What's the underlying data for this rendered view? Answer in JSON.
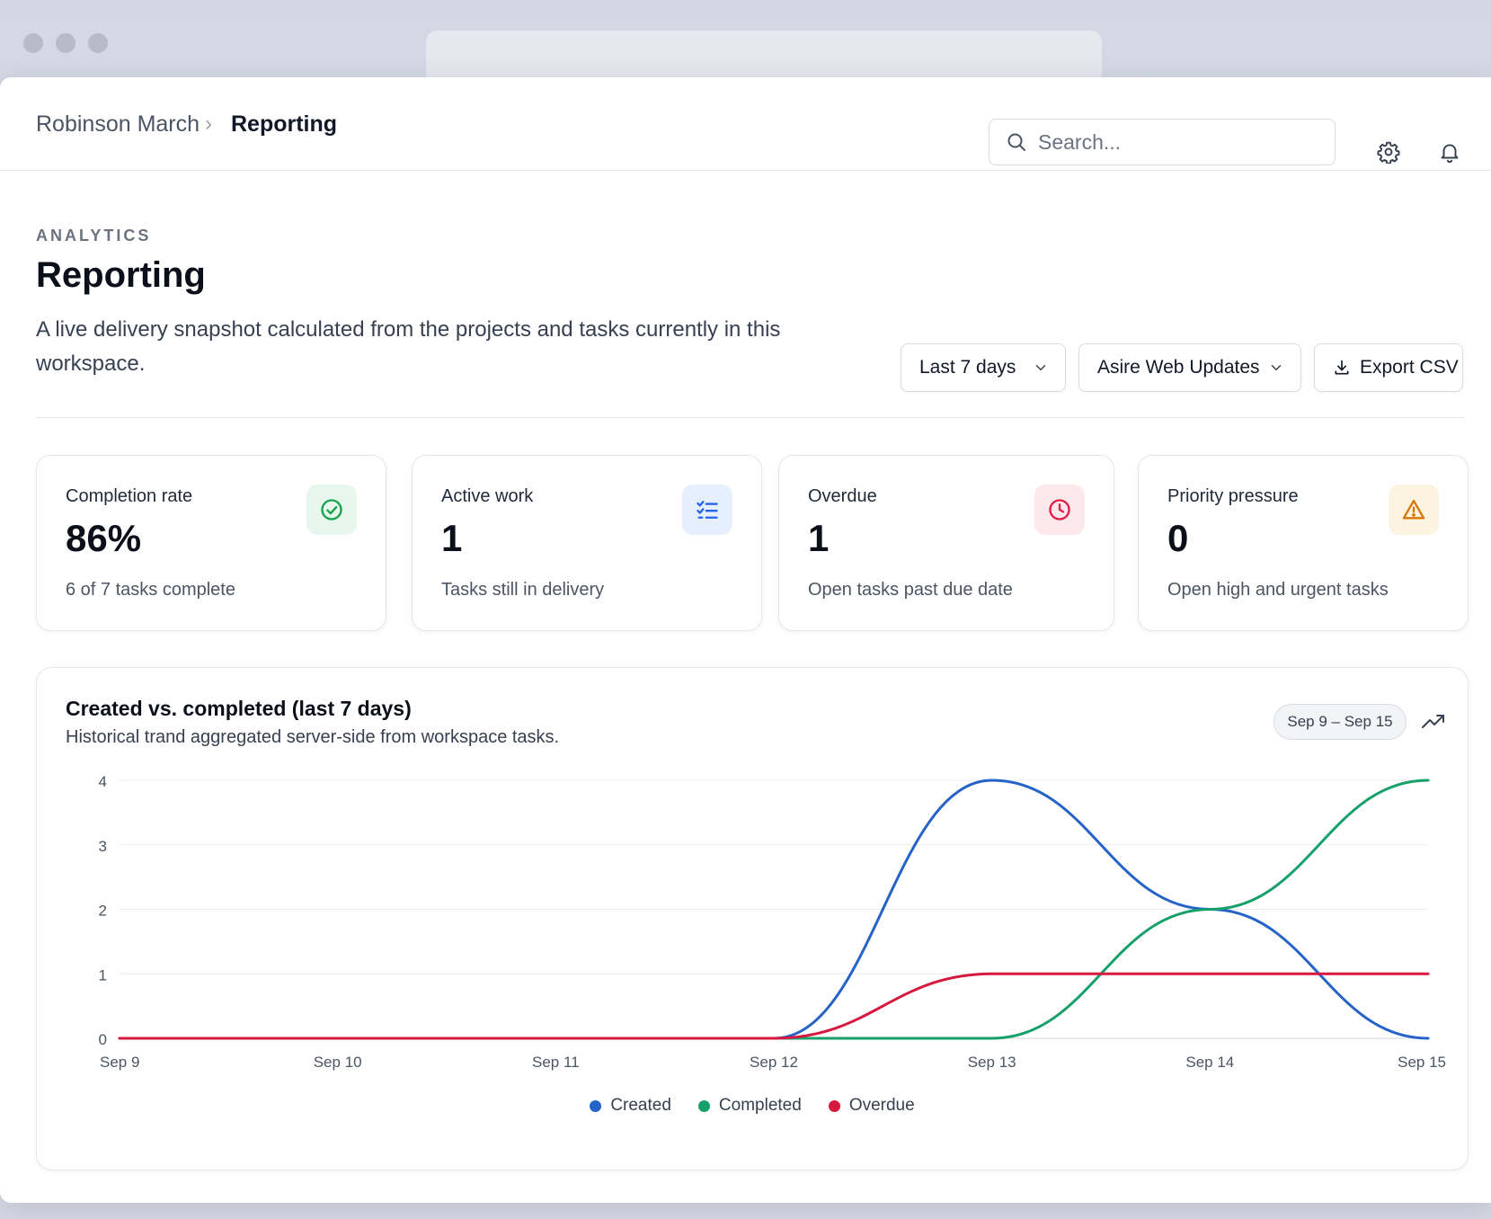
{
  "breadcrumb": {
    "parent": "Robinson March",
    "separator": "›",
    "current": "Reporting"
  },
  "search": {
    "placeholder": "Search..."
  },
  "header": {
    "eyebrow": "ANALYTICS",
    "title": "Reporting",
    "subtitle": "A live delivery snapshot calculated from the projects and tasks currently in this workspace."
  },
  "controls": {
    "range_select": "Last 7 days",
    "project_select": "Asire Web Updates",
    "export_label": "Export CSV"
  },
  "kpis": [
    {
      "label": "Completion rate",
      "value": "86%",
      "caption": "6 of 7 tasks complete",
      "icon": "check-circle-icon",
      "color": "#16a34a",
      "bg": "#e8f7ee"
    },
    {
      "label": "Active work",
      "value": "1",
      "caption": "Tasks still in delivery",
      "icon": "list-check-icon",
      "color": "#2563eb",
      "bg": "#e6effd"
    },
    {
      "label": "Overdue",
      "value": "1",
      "caption": "Open tasks past due date",
      "icon": "clock-icon",
      "color": "#e11d48",
      "bg": "#fde8ec"
    },
    {
      "label": "Priority pressure",
      "value": "0",
      "caption": "Open high and urgent tasks",
      "icon": "warning-icon",
      "color": "#d97706",
      "bg": "#fdf3e1"
    }
  ],
  "chart_card": {
    "title": "Created vs. completed (last 7 days)",
    "subtitle": "Historical trand aggregated server-side from workspace tasks.",
    "range_pill": "Sep 9 – Sep 15"
  },
  "chart_data": {
    "type": "line",
    "x": [
      "Sep 9",
      "Sep 10",
      "Sep 11",
      "Sep 12",
      "Sep 13",
      "Sep 14",
      "Sep 15"
    ],
    "ylim": [
      0,
      4
    ],
    "yticks": [
      "0",
      "1",
      "2",
      "3",
      "4"
    ],
    "grid": true,
    "legend": "bottom",
    "series": [
      {
        "name": "Created",
        "values": [
          0,
          0,
          0,
          0,
          4,
          2,
          0
        ],
        "color": "#2563c9"
      },
      {
        "name": "Completed",
        "values": [
          0,
          0,
          0,
          0,
          0,
          2,
          4
        ],
        "color": "#16a06a"
      },
      {
        "name": "Overdue",
        "values": [
          0,
          0,
          0,
          0,
          1,
          1,
          1
        ],
        "color": "#d7193f"
      }
    ]
  }
}
